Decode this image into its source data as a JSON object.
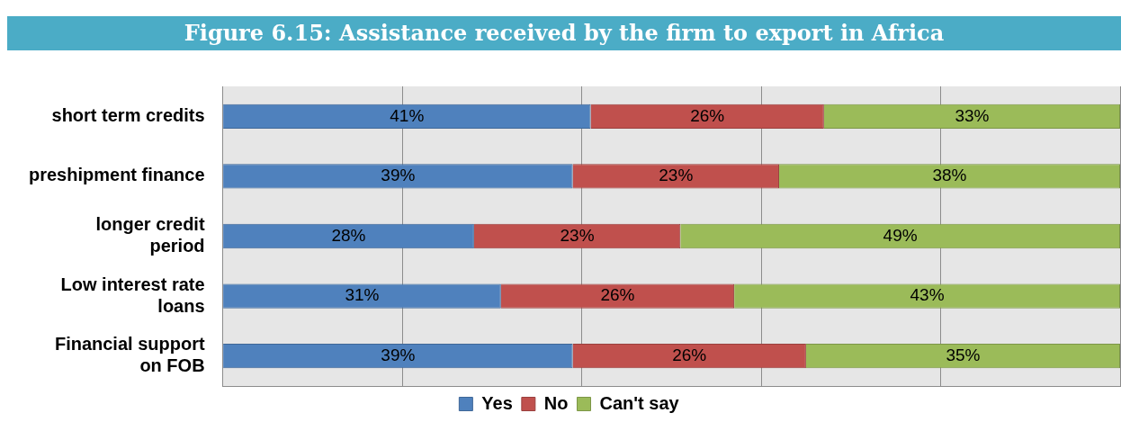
{
  "chart_data": {
    "type": "bar",
    "orientation": "horizontal",
    "stacked": true,
    "title": "Figure 6.15: Assistance received by the firm to export in Africa",
    "categories": [
      "short term credits",
      "preshipment finance",
      "longer credit period",
      "Low interest rate loans",
      "Financial support on FOB"
    ],
    "series": [
      {
        "name": "Yes",
        "color": "#4f81bd",
        "values": [
          41,
          39,
          28,
          31,
          39
        ],
        "value_labels": [
          "41%",
          "39%",
          "28%",
          "31%",
          "39%"
        ]
      },
      {
        "name": "No",
        "color": "#c0504d",
        "values": [
          26,
          23,
          23,
          26,
          26
        ],
        "value_labels": [
          "26%",
          "23%",
          "23%",
          "26%",
          "26%"
        ]
      },
      {
        "name": "Can't say",
        "color": "#9bbb59",
        "values": [
          33,
          38,
          49,
          43,
          35
        ],
        "value_labels": [
          "33%",
          "38%",
          "49%",
          "43%",
          "35%"
        ]
      }
    ],
    "xlim": [
      0,
      100
    ],
    "xticks": [
      {
        "value": 0,
        "label": null
      },
      {
        "value": 20,
        "label": null
      },
      {
        "value": 40,
        "label": null
      },
      {
        "value": 60,
        "label": null
      },
      {
        "value": 80,
        "label": null
      },
      {
        "value": 100,
        "label": null
      }
    ],
    "tick_labels": "y",
    "grid": "x",
    "legend": "bottom"
  }
}
